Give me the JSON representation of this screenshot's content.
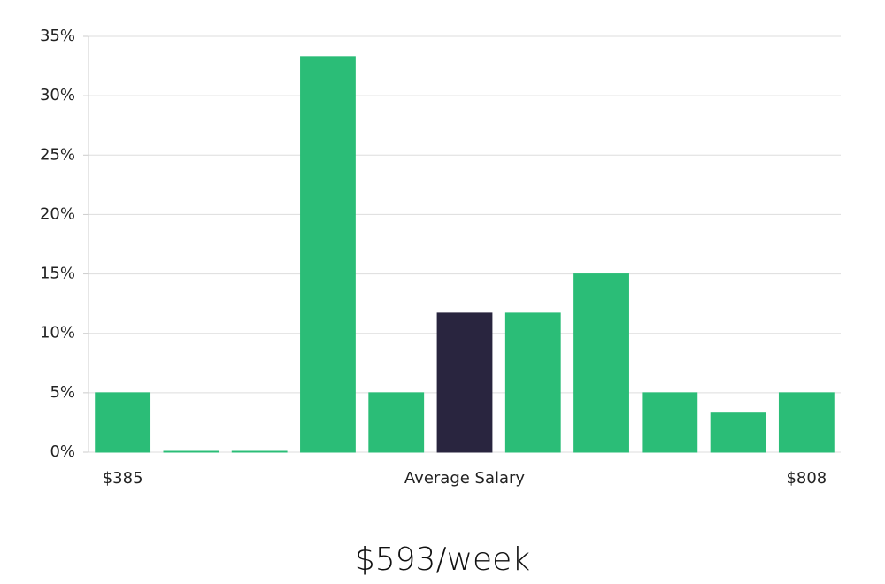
{
  "chart_data": {
    "type": "bar",
    "categories": [
      "$385",
      null,
      null,
      null,
      null,
      "Average Salary",
      null,
      null,
      null,
      null,
      "$808"
    ],
    "values": [
      5,
      0,
      0,
      33.3,
      5,
      11.7,
      11.7,
      15,
      5,
      3.3,
      5
    ],
    "colors": [
      "#2bbd77",
      "#2bbd77",
      "#2bbd77",
      "#2bbd77",
      "#2bbd77",
      "#29253f",
      "#2bbd77",
      "#2bbd77",
      "#2bbd77",
      "#2bbd77",
      "#2bbd77"
    ],
    "ylim": [
      0,
      35
    ],
    "yticks": [
      {
        "value": 0,
        "label": "0%"
      },
      {
        "value": 5,
        "label": "5%"
      },
      {
        "value": 10,
        "label": "10%"
      },
      {
        "value": 15,
        "label": "15%"
      },
      {
        "value": 20,
        "label": "20%"
      },
      {
        "value": 25,
        "label": "25%"
      },
      {
        "value": 30,
        "label": "30%"
      },
      {
        "value": 35,
        "label": "35%"
      }
    ],
    "grid": true,
    "footer": "$593/week"
  }
}
